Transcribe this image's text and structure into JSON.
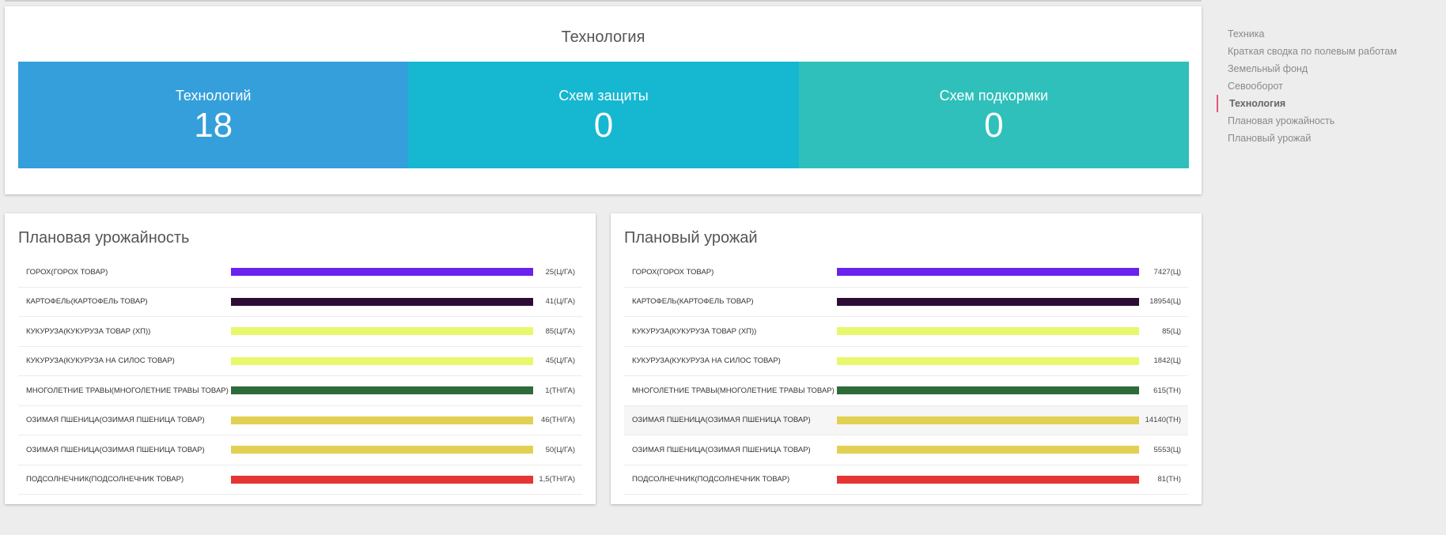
{
  "tech_section": {
    "title": "Технология",
    "stats": [
      {
        "label": "Технологий",
        "value": "18"
      },
      {
        "label": "Схем защиты",
        "value": "0"
      },
      {
        "label": "Схем подкормки",
        "value": "0"
      }
    ]
  },
  "planned_yield": {
    "title": "Плановая урожайность",
    "rows": [
      {
        "name": "ГОРОХ(ГОРОХ ТОВАР)",
        "value": "25(Ц/ГА)",
        "fill": 1.0,
        "color": "#6a22ee"
      },
      {
        "name": "КАРТОФЕЛЬ(КАРТОФЕЛЬ ТОВАР)",
        "value": "41(Ц/ГА)",
        "fill": 1.0,
        "color": "#2e0d35"
      },
      {
        "name": "КУКУРУЗА(КУКУРУЗА ТОВАР (ХП))",
        "value": "85(Ц/ГА)",
        "fill": 1.0,
        "color": "#e8f86c"
      },
      {
        "name": "КУКУРУЗА(КУКУРУЗА НА СИЛОС ТОВАР)",
        "value": "45(Ц/ГА)",
        "fill": 1.0,
        "color": "#e8f86c"
      },
      {
        "name": "МНОГОЛЕТНИЕ ТРАВЫ(МНОГОЛЕТНИЕ ТРАВЫ ТОВАР)",
        "value": "1(ТН/ГА)",
        "fill": 1.0,
        "color": "#2f6b3a"
      },
      {
        "name": "ОЗИМАЯ ПШЕНИЦА(ОЗИМАЯ ПШЕНИЦА ТОВАР)",
        "value": "46(ТН/ГА)",
        "fill": 1.0,
        "color": "#e2d053"
      },
      {
        "name": "ОЗИМАЯ ПШЕНИЦА(ОЗИМАЯ ПШЕНИЦА ТОВАР)",
        "value": "50(Ц/ГА)",
        "fill": 1.0,
        "color": "#e2d053"
      },
      {
        "name": "ПОДСОЛНЕЧНИК(ПОДСОЛНЕЧНИК ТОВАР)",
        "value": "1,5(ТН/ГА)",
        "fill": 1.0,
        "color": "#e53535"
      }
    ]
  },
  "planned_harvest": {
    "title": "Плановый урожай",
    "rows": [
      {
        "name": "ГОРОХ(ГОРОХ ТОВАР)",
        "value": "7427(Ц)",
        "fill": 1.0,
        "color": "#6a22ee"
      },
      {
        "name": "КАРТОФЕЛЬ(КАРТОФЕЛЬ ТОВАР)",
        "value": "18954(Ц)",
        "fill": 1.0,
        "color": "#2e0d35"
      },
      {
        "name": "КУКУРУЗА(КУКУРУЗА ТОВАР (ХП))",
        "value": "85(Ц)",
        "fill": 1.0,
        "color": "#e8f86c"
      },
      {
        "name": "КУКУРУЗА(КУКУРУЗА НА СИЛОС ТОВАР)",
        "value": "1842(Ц)",
        "fill": 1.0,
        "color": "#e8f86c"
      },
      {
        "name": "МНОГОЛЕТНИЕ ТРАВЫ(МНОГОЛЕТНИЕ ТРАВЫ ТОВАР)",
        "value": "615(ТН)",
        "fill": 1.0,
        "color": "#2f6b3a"
      },
      {
        "name": "ОЗИМАЯ ПШЕНИЦА(ОЗИМАЯ ПШЕНИЦА ТОВАР)",
        "value": "14140(ТН)",
        "fill": 1.0,
        "color": "#e2d053"
      },
      {
        "name": "ОЗИМАЯ ПШЕНИЦА(ОЗИМАЯ ПШЕНИЦА ТОВАР)",
        "value": "5553(Ц)",
        "fill": 1.0,
        "color": "#e2d053"
      },
      {
        "name": "ПОДСОЛНЕЧНИК(ПОДСОЛНЕЧНИК ТОВАР)",
        "value": "81(ТН)",
        "fill": 1.0,
        "color": "#e53535"
      }
    ],
    "highlighted_row": 5
  },
  "sidenav": {
    "items": [
      {
        "label": "Техника"
      },
      {
        "label": "Краткая сводка по полевым работам"
      },
      {
        "label": "Земельный фонд"
      },
      {
        "label": "Севооборот"
      },
      {
        "label": "Технология"
      },
      {
        "label": "Плановая урожайность"
      },
      {
        "label": "Плановый урожай"
      }
    ],
    "active_index": 4
  }
}
